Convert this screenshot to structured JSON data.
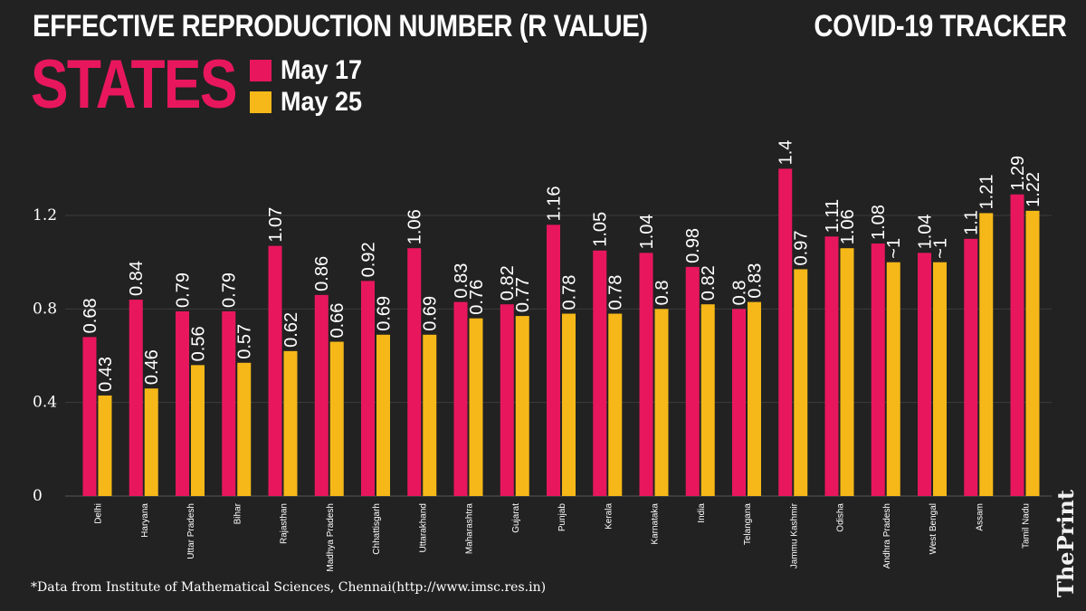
{
  "header": {
    "title": "EFFECTIVE REPRODUCTION NUMBER (R VALUE)",
    "tracker": "COVID-19 TRACKER",
    "section": "STATES"
  },
  "colors": {
    "may17": "#e8175d",
    "may25": "#f5b818",
    "grid": "#3c3c3c",
    "background": "#222222"
  },
  "footnote": "*Data from Institute of Mathematical Sciences, Chennai(http://www.imsc.res.in)",
  "brand": "ThePrint",
  "chart_data": {
    "type": "bar",
    "title": "EFFECTIVE REPRODUCTION NUMBER (R VALUE)",
    "categories": [
      "Delhi",
      "Haryana",
      "Uttar Pradesh",
      "Bihar",
      "Rajasthan",
      "Madhya Pradesh",
      "Chhattisgarh",
      "Uttarakhand",
      "Maharashtra",
      "Gujarat",
      "Punjab",
      "Kerala",
      "Karnataka",
      "India",
      "Telangana",
      "Jammu Kashmir",
      "Odisha",
      "Andhra Pradesh",
      "West Bengal",
      "Assam",
      "Tamil Nadu"
    ],
    "series": [
      {
        "name": "May 17",
        "values": [
          0.68,
          0.84,
          0.79,
          0.79,
          1.07,
          0.86,
          0.92,
          1.06,
          0.83,
          0.82,
          1.16,
          1.05,
          1.04,
          0.98,
          0.8,
          1.4,
          1.11,
          1.08,
          1.04,
          1.1,
          1.29
        ],
        "labels": [
          "0.68",
          "0.84",
          "0.79",
          "0.79",
          "1.07",
          "0.86",
          "0.92",
          "1.06",
          "0.83",
          "0.82",
          "1.16",
          "1.05",
          "1.04",
          "0.98",
          "0.8",
          "1.4",
          "1.11",
          "1.08",
          "1.04",
          "1.1",
          "1.29"
        ]
      },
      {
        "name": "May 25",
        "values": [
          0.43,
          0.46,
          0.56,
          0.57,
          0.62,
          0.66,
          0.69,
          0.69,
          0.76,
          0.77,
          0.78,
          0.78,
          0.8,
          0.82,
          0.83,
          0.97,
          1.06,
          1.0,
          1.0,
          1.21,
          1.22
        ],
        "labels": [
          "0.43",
          "0.46",
          "0.56",
          "0.57",
          "0.62",
          "0.66",
          "0.69",
          "0.69",
          "0.76",
          "0.77",
          "0.78",
          "0.78",
          "0.8",
          "0.82",
          "0.83",
          "0.97",
          "1.06",
          "~1",
          "~1",
          "1.21",
          "1.22"
        ]
      }
    ],
    "yticks": [
      "0",
      "0.4",
      "0.8",
      "1.2"
    ],
    "ylim": [
      0,
      1.6
    ],
    "grid": true,
    "xlabel": "",
    "ylabel": "",
    "legend": "top-left"
  }
}
